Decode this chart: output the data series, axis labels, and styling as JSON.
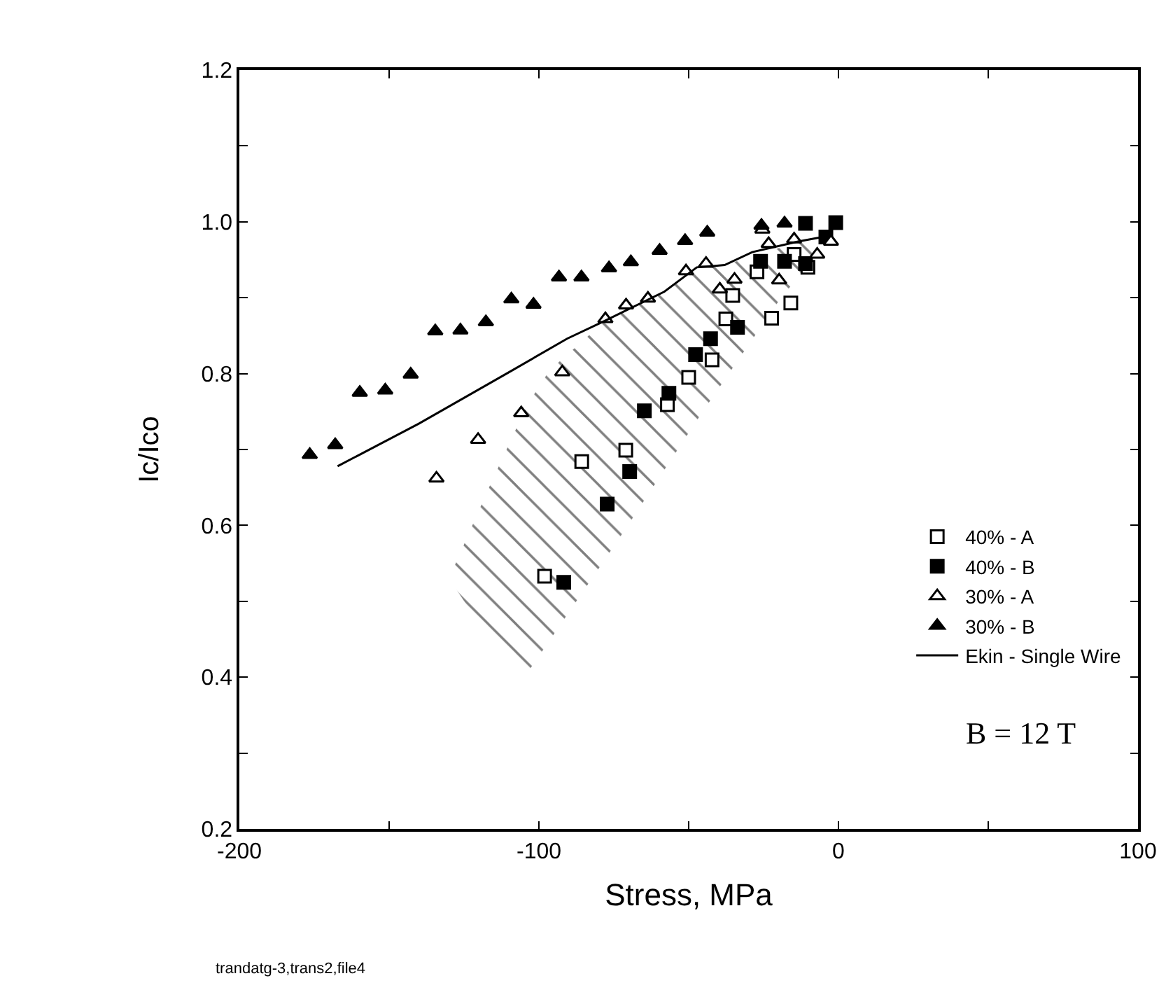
{
  "chart_data": {
    "type": "scatter",
    "xlabel": "Stress, MPa",
    "ylabel": "Ic/Ico",
    "xlim": [
      -200,
      100
    ],
    "xticks": [
      -200,
      {
        "value": -150,
        "label": null
      },
      -100,
      {
        "value": -50,
        "label": null
      },
      0,
      {
        "value": 50,
        "label": null
      },
      100
    ],
    "ylim": [
      0.2,
      1.2
    ],
    "yticks": [
      0.2,
      {
        "value": 0.3,
        "label": null
      },
      0.4,
      {
        "value": 0.5,
        "label": null
      },
      0.6,
      {
        "value": 0.7,
        "label": null
      },
      0.8,
      {
        "value": 0.9,
        "label": null
      },
      {
        "value": 1.0,
        "label": "1.0"
      },
      {
        "value": 1.1,
        "label": null
      },
      1.2
    ],
    "legend": "bottom right",
    "series": [
      {
        "type": "area",
        "color": "#000000",
        "x": [
          -130,
          -117,
          -104,
          -96.5,
          -78,
          -71.5,
          -58,
          -46,
          -38,
          -19.5,
          -2.5
        ],
        "values": [
          null,
          null,
          null,
          null,
          null,
          null,
          null,
          null,
          null,
          null,
          null
        ],
        "lower": [
          0.53,
          0.453,
          0.405,
          0.448,
          0.555,
          0.593,
          0.674,
          0.746,
          0.792,
          0.898,
          0.98
        ],
        "upper": [
          0.53,
          0.647,
          0.758,
          0.804,
          0.869,
          0.882,
          0.908,
          0.94,
          0.943,
          0.966,
          0.982
        ]
      },
      {
        "name": "40% - A",
        "marker": "square",
        "color": "#ffffff",
        "x": [
          -98.1,
          -85.7,
          -71.0,
          -57.1,
          -50.0,
          -42.2,
          -37.6,
          -35.3,
          -22.3,
          -15.9,
          -27.2,
          -14.8,
          -10.2
        ],
        "values": [
          0.533,
          0.684,
          0.699,
          0.759,
          0.795,
          0.818,
          0.872,
          0.903,
          0.873,
          0.893,
          0.934,
          0.957,
          0.94
        ]
      },
      {
        "name": "40% - B",
        "marker": "square",
        "color": "#000000",
        "x": [
          -91.7,
          -77.2,
          -69.7,
          -64.8,
          -56.6,
          -47.7,
          -42.7,
          -33.7,
          -26.0,
          -18.0,
          -11.0,
          -11.0,
          -0.9,
          -4.2
        ],
        "values": [
          0.525,
          0.628,
          0.671,
          0.751,
          0.774,
          0.825,
          0.846,
          0.861,
          0.948,
          0.948,
          0.945,
          0.998,
          0.999,
          0.98
        ]
      },
      {
        "name": "30% - A",
        "marker": "triangle",
        "color": "#ffffff",
        "x": [
          -134.2,
          -120.3,
          -105.9,
          -92.2,
          -77.8,
          -70.9,
          -63.6,
          -50.9,
          -44.2,
          -39.6,
          -34.7,
          -23.3,
          -25.4,
          -19.8,
          -14.8,
          -7.1,
          -2.5
        ],
        "values": [
          0.662,
          0.713,
          0.748,
          0.802,
          0.872,
          0.89,
          0.899,
          0.935,
          0.945,
          0.911,
          0.924,
          0.971,
          0.99,
          0.923,
          0.977,
          0.957,
          0.974
        ]
      },
      {
        "name": "30% - B",
        "marker": "triangle",
        "color": "#000000",
        "x": [
          -176.5,
          -168,
          -159.8,
          -151.3,
          -142.8,
          -134.6,
          -126.2,
          -117.7,
          -109.2,
          -101.8,
          -93.3,
          -85.8,
          -76.6,
          -69.3,
          -59.7,
          -51.2,
          -43.8,
          -25.7,
          -18.0
        ],
        "values": [
          0.693,
          0.706,
          0.775,
          0.778,
          0.799,
          0.856,
          0.857,
          0.868,
          0.898,
          0.891,
          0.927,
          0.927,
          0.939,
          0.947,
          0.962,
          0.975,
          0.986,
          0.995,
          0.998
        ]
      },
      {
        "name": "Ekin - Single Wire",
        "type": "line",
        "line_style": "solid",
        "color": "#000000",
        "x": [
          -167.2,
          -140.1,
          -110.8,
          -90.6,
          -78.3,
          -58.1,
          -47.3,
          -38.0,
          -28.8,
          -13.5,
          -2.5
        ],
        "values": [
          0.678,
          0.734,
          0.8,
          0.846,
          0.869,
          0.908,
          0.94,
          0.943,
          0.96,
          0.974,
          0.982
        ]
      }
    ],
    "annotations": [
      "B = 12 T",
      "trandatg-3,trans2,file4"
    ]
  }
}
